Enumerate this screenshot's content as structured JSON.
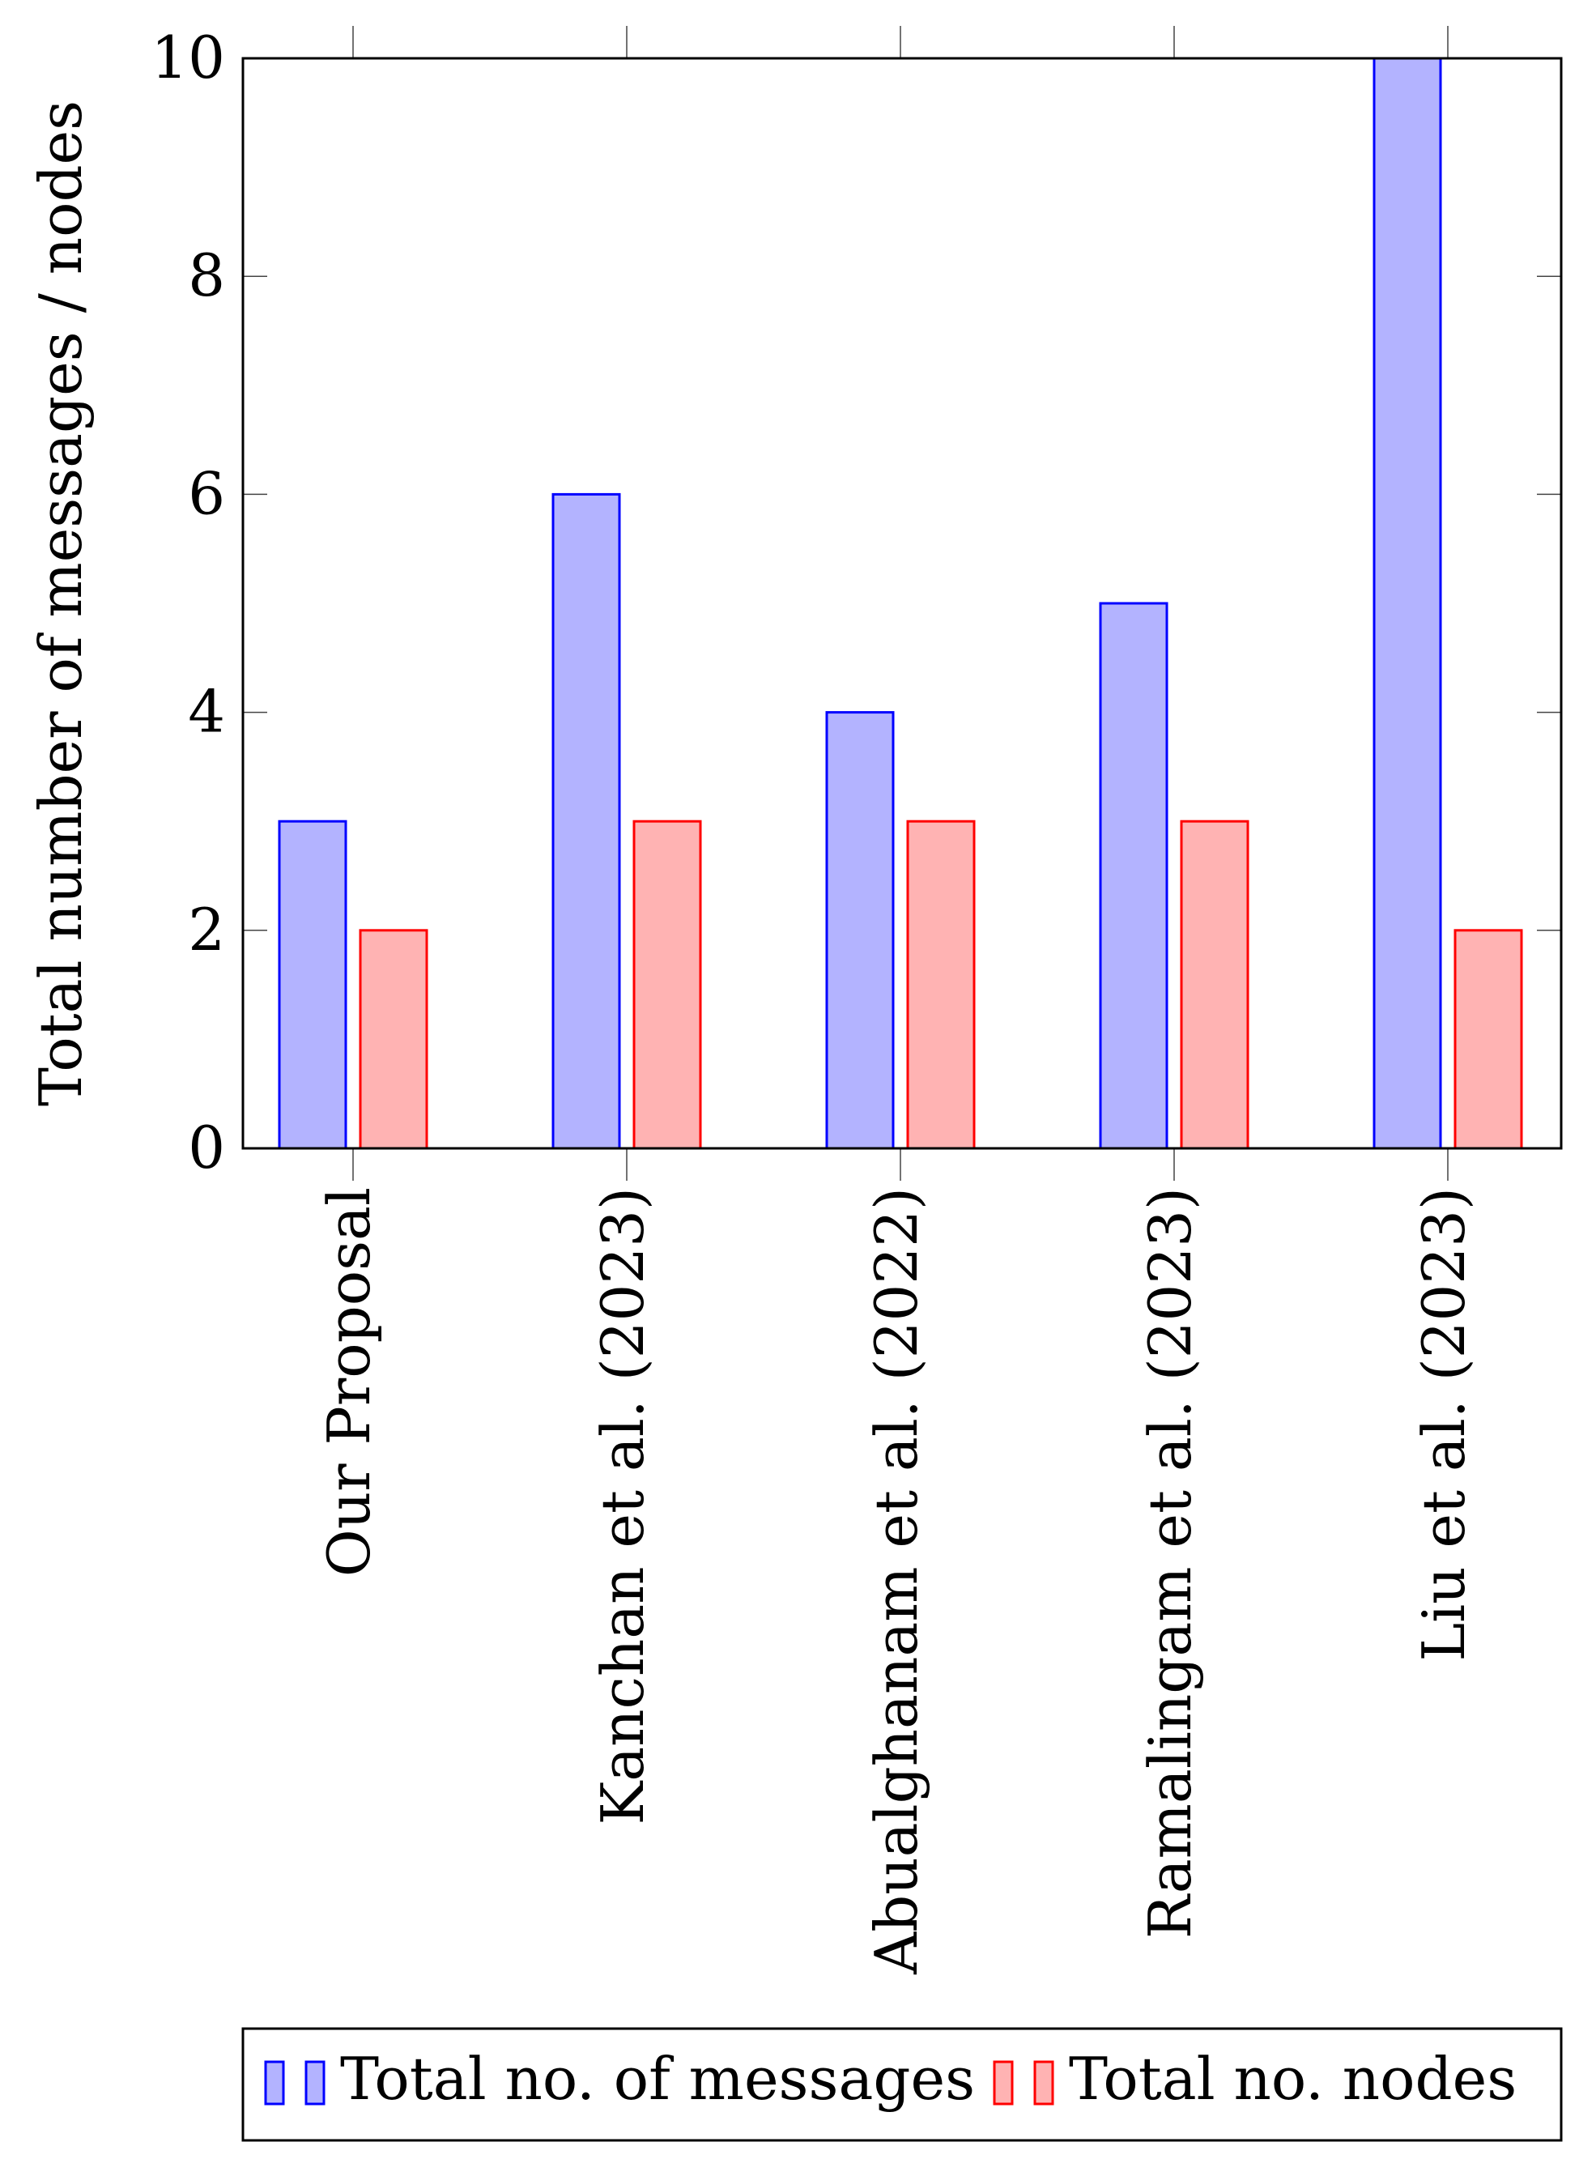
{
  "chart_data": {
    "type": "bar",
    "title": "",
    "xlabel": "",
    "ylabel": "Total number of messages / nodes",
    "ylim": [
      0,
      10
    ],
    "yticks": [
      0,
      2,
      4,
      6,
      8,
      10
    ],
    "grid": false,
    "categories": [
      "Our Proposal",
      "Kanchan et al. (2023)",
      "Abualghanam et al. (2022)",
      "Ramalingam et al. (2023)",
      "Liu et al. (2023)"
    ],
    "series": [
      {
        "name": "Total no. of messages",
        "values": [
          3,
          6,
          4,
          5,
          10
        ],
        "fill": "#b3b3ff",
        "stroke": "#0000ff"
      },
      {
        "name": "Total no. nodes",
        "values": [
          2,
          3,
          3,
          3,
          2
        ],
        "fill": "#ffb3b3",
        "stroke": "#ff0000"
      }
    ],
    "legend_position": "bottom"
  }
}
